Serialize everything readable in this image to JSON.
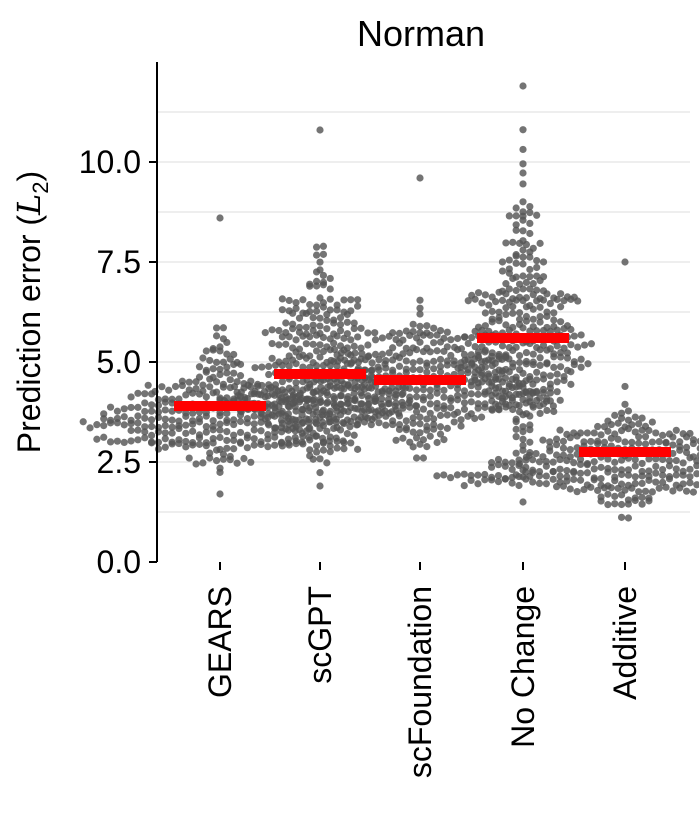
{
  "chart_data": {
    "type": "swarm",
    "title": "Norman",
    "ylabel_prefix": "Prediction error (",
    "ylabel_var": "L",
    "ylabel_sub": "2",
    "ylabel_suffix": ")",
    "xlabel": "",
    "ylim": [
      0,
      12.5
    ],
    "yticks": [
      0.0,
      2.5,
      5.0,
      7.5,
      10.0
    ],
    "ytick_labels": [
      "0.0",
      "2.5",
      "5.0",
      "7.5",
      "10.0"
    ],
    "minor_gridlines": [
      1.25,
      3.75,
      6.25,
      8.75,
      11.25
    ],
    "categories": [
      "GEARS",
      "scGPT",
      "scFoundation",
      "No Change",
      "Additive"
    ],
    "means": [
      3.9,
      4.7,
      4.55,
      5.6,
      2.75
    ],
    "point_ranges": [
      [
        1.7,
        8.6
      ],
      [
        1.9,
        10.8
      ],
      [
        2.6,
        9.6
      ],
      [
        1.5,
        11.9
      ],
      [
        1.1,
        7.5
      ]
    ],
    "colors": {
      "points": "#555555",
      "mean_bar": "#ff0000",
      "grid": "#dddddd"
    }
  }
}
